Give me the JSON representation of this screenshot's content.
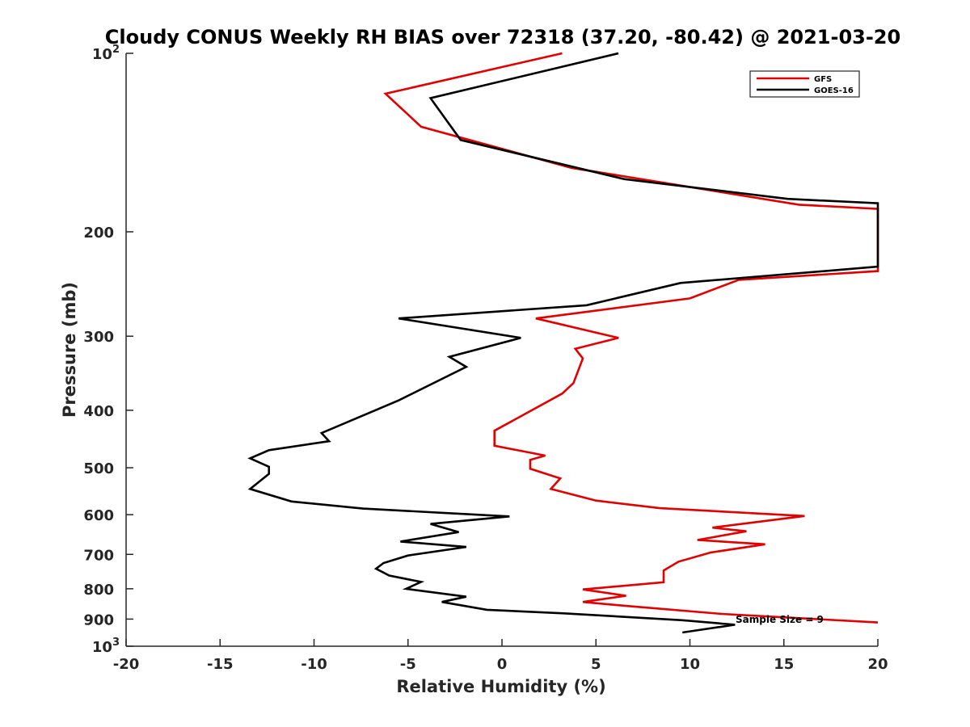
{
  "chart_data": {
    "type": "line",
    "title": "Cloudy CONUS Weekly RH BIAS over 72318 (37.20, -80.42) @ 2021-03-20",
    "xlabel": "Relative Humidity (%)",
    "ylabel": "Pressure (mb)",
    "xlim": [
      -20,
      20
    ],
    "ylim": [
      1000,
      100
    ],
    "y_scale": "log",
    "grid": false,
    "legend_position": "top-right",
    "x_ticks": [
      "-20",
      "-15",
      "-10",
      "-5",
      "0",
      "5",
      "10",
      "15",
      "20"
    ],
    "y_ticks": [
      {
        "value": 100,
        "base": "10",
        "exp": "2"
      },
      {
        "value": 200,
        "label": "200"
      },
      {
        "value": 300,
        "label": "300"
      },
      {
        "value": 400,
        "label": "400"
      },
      {
        "value": 500,
        "label": "500"
      },
      {
        "value": 600,
        "label": "600"
      },
      {
        "value": 700,
        "label": "700"
      },
      {
        "value": 800,
        "label": "800"
      },
      {
        "value": 900,
        "label": "900"
      },
      {
        "value": 1000,
        "base": "10",
        "exp": "3"
      }
    ],
    "annotation": "Sample Size = 9",
    "series": [
      {
        "name": "GFS",
        "color": "#e00000",
        "points": [
          [
            3.2,
            100
          ],
          [
            -6.2,
            117
          ],
          [
            -4.3,
            133
          ],
          [
            3.7,
            156
          ],
          [
            15.8,
            180
          ],
          [
            20.0,
            183
          ],
          [
            20.0,
            233
          ],
          [
            12.6,
            241
          ],
          [
            10.0,
            259
          ],
          [
            1.8,
            280
          ],
          [
            6.2,
            302
          ],
          [
            3.9,
            315
          ],
          [
            4.3,
            327
          ],
          [
            3.8,
            360
          ],
          [
            3.2,
            375
          ],
          [
            -0.4,
            433
          ],
          [
            -0.4,
            459
          ],
          [
            2.3,
            477
          ],
          [
            1.5,
            485
          ],
          [
            1.5,
            502
          ],
          [
            3.1,
            521
          ],
          [
            2.6,
            543
          ],
          [
            5.0,
            568
          ],
          [
            8.4,
            585
          ],
          [
            16.1,
            603
          ],
          [
            11.2,
            631
          ],
          [
            13.0,
            640
          ],
          [
            10.4,
            662
          ],
          [
            14.0,
            673
          ],
          [
            11.1,
            695
          ],
          [
            9.4,
            720
          ],
          [
            8.6,
            745
          ],
          [
            8.6,
            780
          ],
          [
            4.3,
            802
          ],
          [
            6.6,
            822
          ],
          [
            4.3,
            842
          ],
          [
            6.6,
            855
          ],
          [
            11.7,
            882
          ],
          [
            20.0,
            912
          ]
        ]
      },
      {
        "name": "GOES-16",
        "color": "#000000",
        "points": [
          [
            6.2,
            100
          ],
          [
            -3.8,
            119
          ],
          [
            -2.2,
            140
          ],
          [
            6.5,
            163
          ],
          [
            15.2,
            176
          ],
          [
            20.0,
            179
          ],
          [
            20.0,
            229
          ],
          [
            9.5,
            244
          ],
          [
            4.5,
            266
          ],
          [
            -5.5,
            280
          ],
          [
            1.0,
            302
          ],
          [
            -2.8,
            325
          ],
          [
            -1.9,
            338
          ],
          [
            -5.5,
            385
          ],
          [
            -9.6,
            437
          ],
          [
            -9.2,
            451
          ],
          [
            -12.4,
            467
          ],
          [
            -13.4,
            482
          ],
          [
            -12.4,
            498
          ],
          [
            -12.4,
            512
          ],
          [
            -13.4,
            543
          ],
          [
            -11.2,
            570
          ],
          [
            -7.4,
            586
          ],
          [
            0.4,
            604
          ],
          [
            -3.8,
            622
          ],
          [
            -2.3,
            642
          ],
          [
            -5.4,
            666
          ],
          [
            -1.9,
            680
          ],
          [
            -5.0,
            703
          ],
          [
            -6.3,
            724
          ],
          [
            -6.7,
            740
          ],
          [
            -6.0,
            760
          ],
          [
            -4.3,
            779
          ],
          [
            -5.1,
            800
          ],
          [
            -1.9,
            825
          ],
          [
            -3.2,
            842
          ],
          [
            -0.8,
            868
          ],
          [
            3.3,
            880
          ],
          [
            9.6,
            904
          ],
          [
            12.4,
            920
          ],
          [
            9.6,
            948
          ]
        ]
      }
    ]
  }
}
